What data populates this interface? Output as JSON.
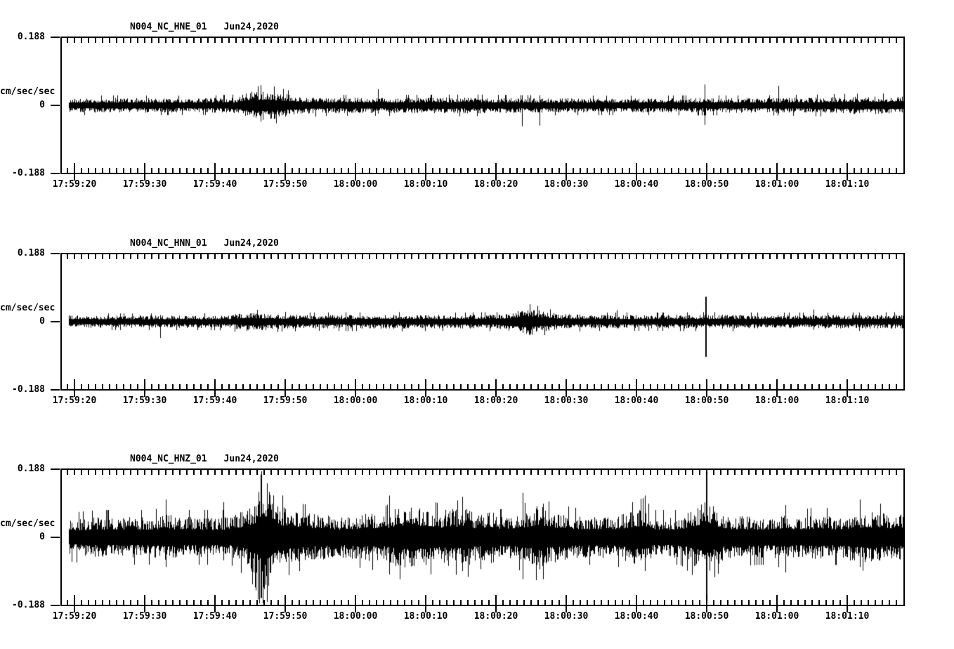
{
  "meta": {
    "background_color": "#ffffff",
    "ink_color": "#000000"
  },
  "chart_data": {
    "type": "line",
    "kind": "seismic-acceleration-waveforms",
    "grid": false,
    "legend": "none",
    "y_axis": {
      "units": "cm/sec/sec",
      "max": 0.188,
      "min": -0.188,
      "max_label": "0.188",
      "zero_label": "0",
      "min_label": "-0.188"
    },
    "x_axis": {
      "start_time": "17:59:18",
      "end_time": "18:01:18",
      "span_seconds": 120,
      "minor_tick_interval_sec": 1,
      "major_tick_interval_sec": 10,
      "tick_labels": [
        "17:59:20",
        "17:59:30",
        "17:59:40",
        "17:59:50",
        "18:00:00",
        "18:00:10",
        "18:00:20",
        "18:00:30",
        "18:00:40",
        "18:00:50",
        "18:01:00",
        "18:01:10"
      ]
    },
    "panels": [
      {
        "title": "N004_NC_HNE_01",
        "date": "Jun24,2020",
        "seed": 1013,
        "envelope": [
          [
            0,
            0.105
          ],
          [
            8,
            0.11
          ],
          [
            20,
            0.105
          ],
          [
            25,
            0.12
          ],
          [
            26.5,
            0.2
          ],
          [
            29,
            0.22
          ],
          [
            31,
            0.19
          ],
          [
            34,
            0.13
          ],
          [
            38,
            0.115
          ],
          [
            50,
            0.115
          ],
          [
            58,
            0.12
          ],
          [
            62,
            0.115
          ],
          [
            70,
            0.11
          ],
          [
            80,
            0.105
          ],
          [
            90,
            0.11
          ],
          [
            100,
            0.11
          ],
          [
            108,
            0.12
          ],
          [
            114,
            0.13
          ],
          [
            120,
            0.13
          ]
        ],
        "spikes": [
          {
            "t": 28.3,
            "up": 0.3,
            "down": 0.24
          },
          {
            "t": 30.2,
            "up": 0.28,
            "down": 0.2
          },
          {
            "t": 45.0,
            "up": 0.24,
            "down": 0.12
          },
          {
            "t": 65.5,
            "up": 0.15,
            "down": 0.31
          },
          {
            "t": 68.0,
            "up": 0.12,
            "down": 0.3
          },
          {
            "t": 91.5,
            "up": 0.31,
            "down": 0.29
          },
          {
            "t": 102.0,
            "up": 0.29,
            "down": 0.12
          }
        ]
      },
      {
        "title": "N004_NC_HNN_01",
        "date": "Jun24,2020",
        "seed": 2027,
        "envelope": [
          [
            0,
            0.095
          ],
          [
            10,
            0.09
          ],
          [
            24,
            0.095
          ],
          [
            26,
            0.14
          ],
          [
            28,
            0.13
          ],
          [
            31,
            0.11
          ],
          [
            36,
            0.1
          ],
          [
            48,
            0.105
          ],
          [
            55,
            0.1
          ],
          [
            62,
            0.105
          ],
          [
            64.5,
            0.15
          ],
          [
            66.5,
            0.21
          ],
          [
            68.5,
            0.15
          ],
          [
            71,
            0.115
          ],
          [
            76,
            0.1
          ],
          [
            85,
            0.1
          ],
          [
            92,
            0.105
          ],
          [
            100,
            0.1
          ],
          [
            110,
            0.1
          ],
          [
            120,
            0.105
          ]
        ],
        "spikes": [
          {
            "t": 14.0,
            "up": 0.1,
            "down": 0.24
          },
          {
            "t": 66.6,
            "up": 0.26,
            "down": 0.2
          },
          {
            "t": 79.0,
            "up": 0.17,
            "down": 0.1
          },
          {
            "t": 91.7,
            "up": 0.37,
            "down": 0.52,
            "w": 2
          },
          {
            "t": 107.0,
            "up": 0.18,
            "down": 0.12
          }
        ]
      },
      {
        "title": "N004_NC_HNZ_01",
        "date": "Jun24,2020",
        "seed": 3041,
        "envelope": [
          [
            0,
            0.26
          ],
          [
            5,
            0.3
          ],
          [
            13,
            0.3
          ],
          [
            15,
            0.36
          ],
          [
            16,
            0.3
          ],
          [
            24,
            0.3
          ],
          [
            26,
            0.42
          ],
          [
            27.5,
            0.55
          ],
          [
            28.5,
            0.88
          ],
          [
            29.5,
            0.72
          ],
          [
            31,
            0.48
          ],
          [
            33,
            0.38
          ],
          [
            40,
            0.3
          ],
          [
            44,
            0.36
          ],
          [
            46,
            0.34
          ],
          [
            48,
            0.46
          ],
          [
            50,
            0.44
          ],
          [
            52,
            0.42
          ],
          [
            54,
            0.36
          ],
          [
            55,
            0.44
          ],
          [
            56.5,
            0.4
          ],
          [
            58,
            0.44
          ],
          [
            59,
            0.32
          ],
          [
            61,
            0.42
          ],
          [
            62,
            0.3
          ],
          [
            66,
            0.38
          ],
          [
            68,
            0.5
          ],
          [
            69,
            0.4
          ],
          [
            72,
            0.34
          ],
          [
            75,
            0.3
          ],
          [
            79,
            0.32
          ],
          [
            83,
            0.44
          ],
          [
            84,
            0.3
          ],
          [
            88,
            0.3
          ],
          [
            91,
            0.5
          ],
          [
            92,
            0.6
          ],
          [
            93,
            0.42
          ],
          [
            95,
            0.32
          ],
          [
            100,
            0.3
          ],
          [
            103,
            0.34
          ],
          [
            105,
            0.3
          ],
          [
            108,
            0.34
          ],
          [
            110,
            0.3
          ],
          [
            113,
            0.36
          ],
          [
            116,
            0.38
          ],
          [
            118,
            0.34
          ],
          [
            120,
            0.34
          ]
        ],
        "spikes": [
          {
            "t": 14.8,
            "up": 0.56,
            "down": 0.44
          },
          {
            "t": 23.0,
            "up": 0.52,
            "down": 0.34
          },
          {
            "t": 28.4,
            "up": 0.93,
            "down": 0.9,
            "w": 2
          },
          {
            "t": 29.2,
            "up": 0.8,
            "down": 0.96
          },
          {
            "t": 46.6,
            "up": 0.62,
            "down": 0.55
          },
          {
            "t": 57.0,
            "up": 0.6,
            "down": 0.5
          },
          {
            "t": 65.6,
            "up": 0.66,
            "down": 0.62
          },
          {
            "t": 68.5,
            "up": 0.5,
            "down": 0.62
          },
          {
            "t": 83.0,
            "up": 0.62,
            "down": 0.5
          },
          {
            "t": 91.8,
            "up": 0.97,
            "down": 0.95,
            "w": 2
          },
          {
            "t": 103.0,
            "up": 0.48,
            "down": 0.52
          },
          {
            "t": 113.6,
            "up": 0.56,
            "down": 0.44
          }
        ]
      }
    ]
  }
}
